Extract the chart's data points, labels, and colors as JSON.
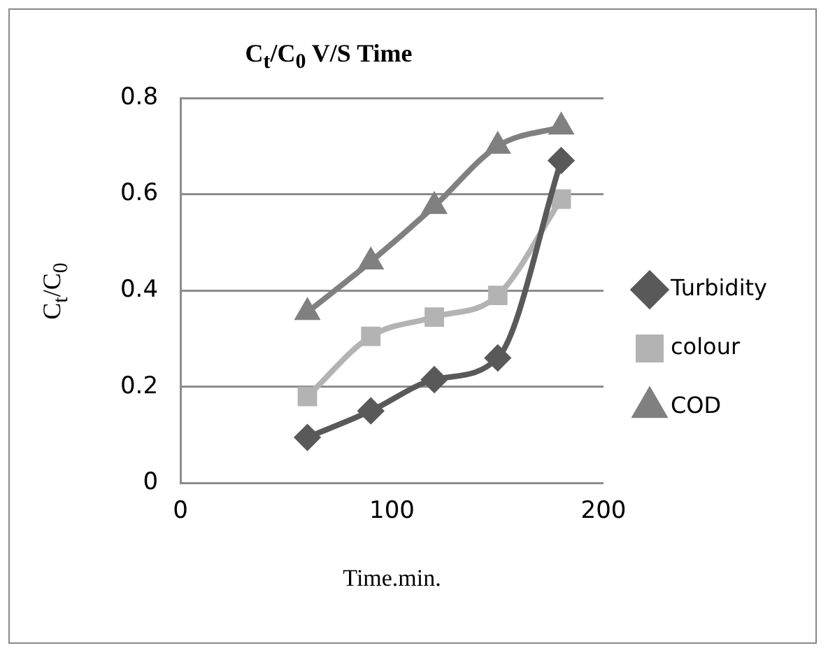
{
  "chart_data": {
    "type": "line",
    "title": "C$_{t}$/C$_{0}$ V/S Time",
    "xlabel": "Time.min.",
    "ylabel": "C$_{t}$/C$_{0}$",
    "x": [
      60,
      90,
      120,
      150,
      180
    ],
    "series": [
      {
        "name": "Turbidity",
        "color": "#595959",
        "marker": "diamond",
        "values": [
          0.095,
          0.15,
          0.215,
          0.26,
          0.67
        ]
      },
      {
        "name": "colour",
        "color": "#b3b3b3",
        "marker": "square",
        "values": [
          0.18,
          0.305,
          0.345,
          0.39,
          0.59
        ]
      },
      {
        "name": "COD",
        "color": "#808080",
        "marker": "triangle",
        "values": [
          0.355,
          0.46,
          0.575,
          0.7,
          0.74
        ]
      }
    ],
    "xlim": [
      0,
      200
    ],
    "xticks": [
      0,
      100,
      200
    ],
    "ylim": [
      0,
      0.8
    ],
    "yticks": [
      0,
      0.2,
      0.4,
      0.6,
      0.8
    ],
    "grid": "y",
    "legend": "right",
    "line_style": "solid"
  }
}
